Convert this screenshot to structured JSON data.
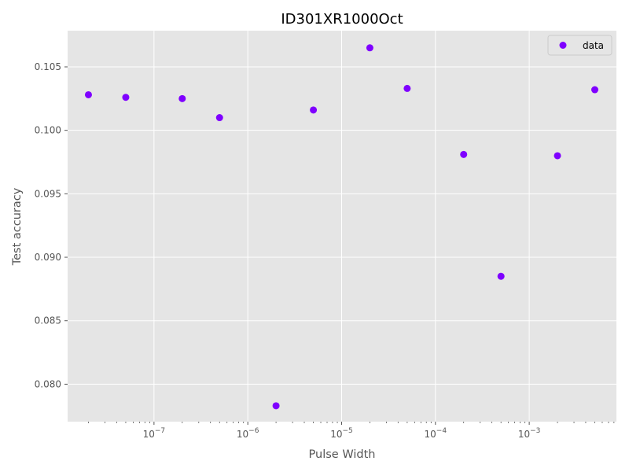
{
  "chart_data": {
    "type": "scatter",
    "title": "ID301XR1000Oct",
    "xlabel": "Pulse Width",
    "ylabel": "Test accuracy",
    "x_scale": "log",
    "xlim": [
      1.2e-08,
      0.0085
    ],
    "ylim": [
      0.07705,
      0.10785
    ],
    "x_ticks": [
      1e-07,
      1e-06,
      1e-05,
      0.0001,
      0.001
    ],
    "x_tick_labels": [
      {
        "base": "10",
        "exp": "−7"
      },
      {
        "base": "10",
        "exp": "−6"
      },
      {
        "base": "10",
        "exp": "−5"
      },
      {
        "base": "10",
        "exp": "−4"
      },
      {
        "base": "10",
        "exp": "−3"
      }
    ],
    "y_ticks": [
      0.08,
      0.085,
      0.09,
      0.095,
      0.1,
      0.105
    ],
    "y_tick_labels": [
      "0.080",
      "0.085",
      "0.090",
      "0.095",
      "0.100",
      "0.105"
    ],
    "grid": true,
    "legend_position": "top-right",
    "series": [
      {
        "name": "data",
        "color": "#7f00ff",
        "points": [
          {
            "x": 2e-08,
            "y": 0.1028
          },
          {
            "x": 5e-08,
            "y": 0.1026
          },
          {
            "x": 2e-07,
            "y": 0.1025
          },
          {
            "x": 5e-07,
            "y": 0.101
          },
          {
            "x": 2e-06,
            "y": 0.0783
          },
          {
            "x": 5e-06,
            "y": 0.1016
          },
          {
            "x": 2e-05,
            "y": 0.1065
          },
          {
            "x": 5e-05,
            "y": 0.1033
          },
          {
            "x": 0.0002,
            "y": 0.0981
          },
          {
            "x": 0.0005,
            "y": 0.0885
          },
          {
            "x": 0.002,
            "y": 0.098
          },
          {
            "x": 0.005,
            "y": 0.1032
          }
        ]
      }
    ]
  },
  "colors": {
    "plot_background": "#e5e5e5",
    "grid": "#ffffff",
    "text": "#555555"
  }
}
